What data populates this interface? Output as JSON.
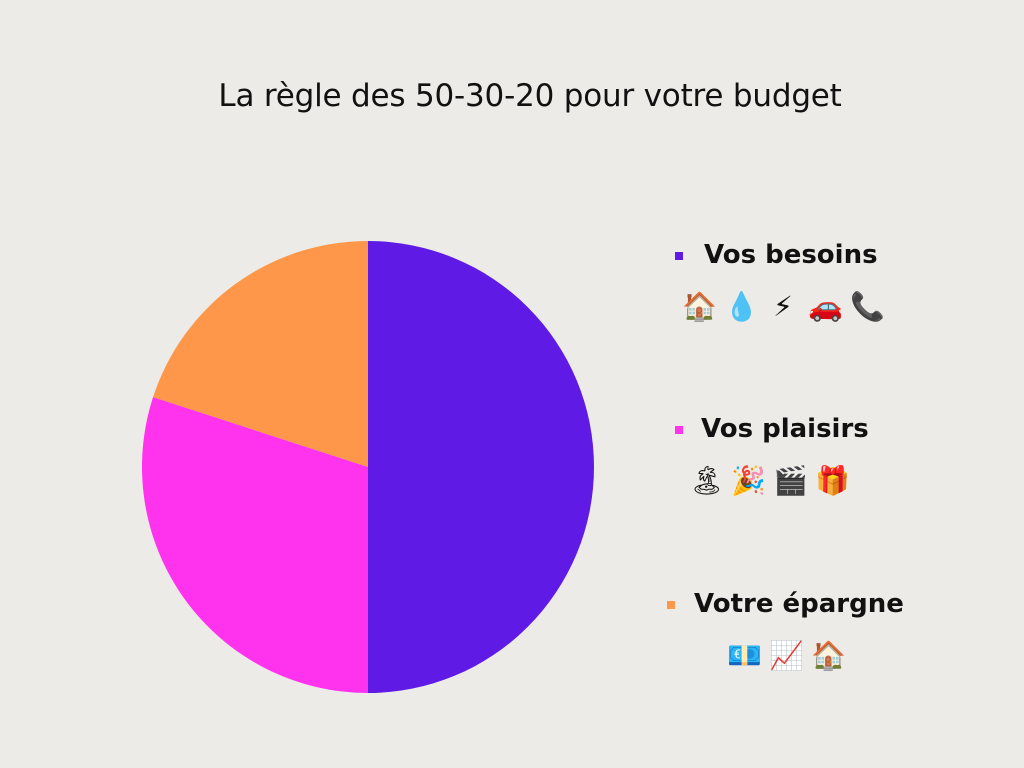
{
  "chart_data": {
    "type": "pie",
    "title": "La règle des 50-30-20 pour votre budget",
    "slices": [
      {
        "label": "Vos besoins",
        "value": 50,
        "color": "#5f1ae5",
        "icons": [
          "house-icon",
          "water-drop-icon",
          "lightning-icon",
          "car-icon",
          "telephone-icon"
        ],
        "glyphs": [
          "🏠",
          "💧",
          "⚡",
          "🚗",
          "📞"
        ]
      },
      {
        "label": "Vos plaisirs",
        "value": 30,
        "color": "#ff33ee",
        "icons": [
          "beach-umbrella-icon",
          "party-popper-icon",
          "clapperboard-icon",
          "gift-icon"
        ],
        "glyphs": [
          "🏝",
          "🎉",
          "🎬",
          "🎁"
        ]
      },
      {
        "label": "Votre épargne",
        "value": 20,
        "color": "#ff974a",
        "icons": [
          "euro-banknote-icon",
          "chart-increasing-icon",
          "house-icon"
        ],
        "glyphs": [
          "💶",
          "📈",
          "🏠"
        ]
      }
    ],
    "legend_position": "right"
  }
}
